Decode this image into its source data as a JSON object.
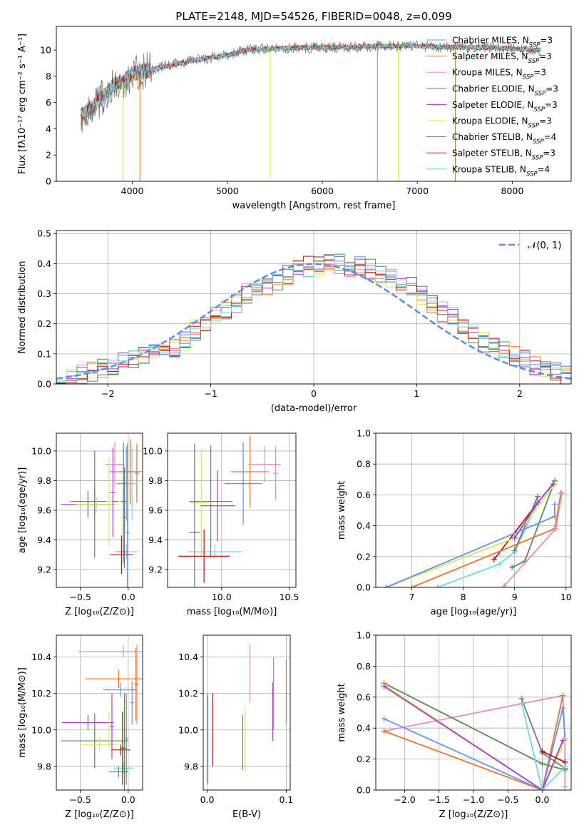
{
  "figure_title": "PLATE=2148, MJD=54526, FIBERID=0048, z=0.099",
  "colors": {
    "Chabrier MILES": "#6495ed",
    "Salpeter MILES": "#e8742c",
    "Kroupa MILES": "#e88bbf",
    "Chabrier ELODIE": "#5a8a5a",
    "Salpeter ELODIE": "#a83cd0",
    "Kroupa ELODIE": "#d8e858",
    "Chabrier STELIB": "#777777",
    "Salpeter STELIB": "#b01818",
    "Kroupa STELIB": "#6fd8e0",
    "gauss": "#5a8fe0"
  },
  "chart_data": [
    {
      "type": "line",
      "panel": "spectrum",
      "title": "PLATE=2148, MJD=54526, FIBERID=0048, z=0.099",
      "xlabel": "wavelength [Angstrom, rest frame]",
      "ylabel": "Flux [fλ10⁻¹⁷ erg cm⁻² s⁻¹ A⁻¹]",
      "xlim": [
        3200,
        8620
      ],
      "ylim": [
        0,
        11.8
      ],
      "xticks": [
        4000,
        5000,
        6000,
        7000,
        8000
      ],
      "yticks": [
        0,
        2,
        4,
        6,
        8,
        10
      ],
      "legend_position": "right",
      "series": [
        {
          "name": "Chabrier MILES, N_SSP=3",
          "color": "#6495ed"
        },
        {
          "name": "Salpeter MILES, N_SSP=3",
          "color": "#e8742c"
        },
        {
          "name": "Kroupa MILES, N_SSP=3",
          "color": "#e88bbf"
        },
        {
          "name": "Chabrier ELODIE, N_SSP=3",
          "color": "#5a8a5a"
        },
        {
          "name": "Salpeter ELODIE, N_SSP=3",
          "color": "#a83cd0"
        },
        {
          "name": "Kroupa ELODIE, N_SSP=3",
          "color": "#d8e858"
        },
        {
          "name": "Chabrier STELIB, N_SSP=4",
          "color": "#777777"
        },
        {
          "name": "Salpeter STELIB, N_SSP=3",
          "color": "#b01818"
        },
        {
          "name": "Kroupa STELIB, N_SSP=4",
          "color": "#6fd8e0"
        }
      ],
      "continuum": [
        [
          3460,
          5.0
        ],
        [
          3600,
          5.8
        ],
        [
          3700,
          6.5
        ],
        [
          3800,
          7.3
        ],
        [
          3900,
          7.6
        ],
        [
          4000,
          8.2
        ],
        [
          4200,
          8.5
        ],
        [
          4500,
          9.0
        ],
        [
          4800,
          9.4
        ],
        [
          5000,
          9.6
        ],
        [
          5200,
          10.0
        ],
        [
          5500,
          10.1
        ],
        [
          5800,
          10.2
        ],
        [
          6200,
          10.2
        ],
        [
          6500,
          10.3
        ],
        [
          6800,
          10.3
        ],
        [
          7000,
          10.3
        ],
        [
          7300,
          10.2
        ],
        [
          7500,
          10.2
        ],
        [
          7800,
          10.2
        ],
        [
          8000,
          10.1
        ],
        [
          8250,
          10.0
        ],
        [
          8300,
          10.0
        ]
      ],
      "dropouts": [
        [
          3900,
          0
        ],
        [
          4080,
          0
        ],
        [
          5450,
          0.2
        ],
        [
          6580,
          0
        ],
        [
          6800,
          0
        ],
        [
          7400,
          0
        ]
      ]
    },
    {
      "type": "line",
      "panel": "residuals",
      "xlabel": "(data-model)/error",
      "ylabel": "Normed distribution",
      "xlim": [
        -2.5,
        2.5
      ],
      "ylim": [
        0,
        0.51
      ],
      "xticks": [
        -2,
        -1,
        0,
        1,
        2
      ],
      "yticks": [
        0.0,
        0.1,
        0.2,
        0.3,
        0.4,
        0.5
      ],
      "legend": [
        "𝒩(0, 1)"
      ],
      "gaussian": {
        "mean": 0,
        "sigma": 1
      },
      "hist_bin_edges_range": [
        -2.5,
        2.5
      ],
      "hist_bins": 50,
      "hist_values_approx": [
        0.02,
        0.03,
        0.03,
        0.04,
        0.05,
        0.06,
        0.07,
        0.09,
        0.1,
        0.11,
        0.12,
        0.12,
        0.14,
        0.18,
        0.21,
        0.22,
        0.25,
        0.27,
        0.3,
        0.31,
        0.33,
        0.33,
        0.36,
        0.38,
        0.39,
        0.39,
        0.4,
        0.4,
        0.39,
        0.39,
        0.38,
        0.36,
        0.35,
        0.33,
        0.32,
        0.3,
        0.27,
        0.24,
        0.22,
        0.19,
        0.17,
        0.14,
        0.13,
        0.11,
        0.09,
        0.08,
        0.06,
        0.05,
        0.04,
        0.03
      ]
    },
    {
      "type": "scatter",
      "panel": "age_vs_Z",
      "xlabel": "Z [log₁₀(Z/Z⊙)]",
      "ylabel": "age  [log₁₀(age/yr)]",
      "xlim": [
        -0.75,
        0.15
      ],
      "ylim": [
        9.08,
        10.12
      ],
      "xticks": [
        -0.5,
        0.0
      ],
      "yticks": [
        9.2,
        9.4,
        9.6,
        9.8,
        10.0
      ],
      "points": [
        {
          "x": -0.14,
          "y": 9.91,
          "xerr": 0.1,
          "yerr": 0.15,
          "color": "#e88bbf"
        },
        {
          "x": -0.05,
          "y": 9.86,
          "xerr": 0.15,
          "yerr": 0.14,
          "color": "#e8742c"
        },
        {
          "x": 0.02,
          "y": 9.86,
          "xerr": 0.12,
          "yerr": 0.22,
          "color": "#e8742c"
        },
        {
          "x": -0.02,
          "y": 9.78,
          "xerr": 0.1,
          "yerr": 0.25,
          "color": "#6495ed"
        },
        {
          "x": 0.04,
          "y": 9.78,
          "xerr": 0.04,
          "yerr": 0.25,
          "color": "#6fd8e0"
        },
        {
          "x": -0.35,
          "y": 9.66,
          "xerr": 0.25,
          "yerr": 0.1,
          "color": "#5a8a5a"
        },
        {
          "x": -0.42,
          "y": 9.64,
          "xerr": 0.28,
          "yerr": 0.09,
          "color": "#a83cd0"
        },
        {
          "x": -0.35,
          "y": 9.64,
          "xerr": 0.2,
          "yerr": 0.36,
          "color": "#777777"
        },
        {
          "x": -0.33,
          "y": 9.64,
          "xerr": 0.22,
          "yerr": 0.05,
          "color": "#d8e858"
        },
        {
          "x": -0.2,
          "y": 9.66,
          "xerr": 0.03,
          "yerr": 0.3,
          "color": "#d8e858"
        },
        {
          "x": -0.16,
          "y": 9.72,
          "xerr": 0.03,
          "yerr": 0.3,
          "color": "#a83cd0"
        },
        {
          "x": -0.02,
          "y": 9.32,
          "xerr": 0.12,
          "yerr": 0.05,
          "color": "#6fd8e0"
        },
        {
          "x": -0.05,
          "y": 9.32,
          "xerr": 0.05,
          "yerr": 0.08,
          "color": "#6495ed"
        },
        {
          "x": -0.07,
          "y": 9.3,
          "xerr": 0.12,
          "yerr": 0.13,
          "color": "#b01818"
        },
        {
          "x": -0.05,
          "y": 9.66,
          "xerr": 0.03,
          "yerr": 0.4,
          "color": "#5a8a5a"
        },
        {
          "x": 0.09,
          "y": 9.85,
          "xerr": 0.02,
          "yerr": 0.2,
          "color": "#e8742c"
        },
        {
          "x": -0.04,
          "y": 9.55,
          "xerr": 0.02,
          "yerr": 0.34,
          "color": "#777777"
        },
        {
          "x": -0.01,
          "y": 9.45,
          "xerr": 0.02,
          "yerr": 0.6,
          "color": "#6495ed"
        }
      ]
    },
    {
      "type": "scatter",
      "panel": "age_vs_mass",
      "xlabel": "mass [log₁₀(M/M⊙)]",
      "ylabel": "",
      "xlim": [
        9.6,
        10.55
      ],
      "ylim": [
        9.08,
        10.12
      ],
      "xticks": [
        10.0,
        10.5
      ],
      "yticks": [
        9.2,
        9.4,
        9.6,
        9.8,
        10.0
      ],
      "points": [
        {
          "x": 10.32,
          "y": 9.91,
          "xerr": 0.12,
          "yerr": 0.12,
          "color": "#e88bbf"
        },
        {
          "x": 10.21,
          "y": 9.86,
          "xerr": 0.14,
          "yerr": 0.24,
          "color": "#e8742c"
        },
        {
          "x": 10.16,
          "y": 9.78,
          "xerr": 0.14,
          "yerr": 0.28,
          "color": "#6495ed"
        },
        {
          "x": 9.92,
          "y": 9.66,
          "xerr": 0.16,
          "yerr": 0.38,
          "color": "#5a8a5a"
        },
        {
          "x": 9.97,
          "y": 9.63,
          "xerr": 0.13,
          "yerr": 0.24,
          "color": "#a83cd0"
        },
        {
          "x": 9.85,
          "y": 9.65,
          "xerr": 0.08,
          "yerr": 0.36,
          "color": "#d8e858"
        },
        {
          "x": 9.8,
          "y": 9.45,
          "xerr": 0.04,
          "yerr": 0.6,
          "color": "#777777"
        },
        {
          "x": 9.95,
          "y": 9.32,
          "xerr": 0.2,
          "yerr": 0.05,
          "color": "#6fd8e0"
        },
        {
          "x": 9.87,
          "y": 9.29,
          "xerr": 0.19,
          "yerr": 0.18,
          "color": "#b01818"
        },
        {
          "x": 10.4,
          "y": 9.85,
          "xerr": 0.02,
          "yerr": 0.18,
          "color": "#e88bbf"
        }
      ]
    },
    {
      "type": "line",
      "panel": "mass_weight_vs_age",
      "xlabel": "age  [log₁₀(age/yr)]",
      "ylabel": "mass weight",
      "xlim": [
        6.3,
        10.1
      ],
      "ylim": [
        0,
        1
      ],
      "xticks": [
        7,
        8,
        9,
        10
      ],
      "yticks": [
        0.0,
        0.2,
        0.4,
        0.6,
        0.8,
        1.0
      ],
      "series": [
        {
          "color": "#6fd8e0",
          "x": [
            7.5,
            8.7,
            9.0,
            9.45,
            9.78
          ],
          "y": [
            0.0,
            0.15,
            0.23,
            0.55,
            0.69
          ]
        },
        {
          "color": "#b01818",
          "x": [
            8.6,
            9.45
          ],
          "y": [
            0.18,
            0.55
          ]
        },
        {
          "color": "#5a8a5a",
          "x": [
            8.95,
            9.2,
            9.78
          ],
          "y": [
            0.13,
            0.17,
            0.69
          ]
        },
        {
          "color": "#777777",
          "x": [
            9.0,
            9.45
          ],
          "y": [
            0.24,
            0.59
          ]
        },
        {
          "color": "#d8e858",
          "x": [
            6.5,
            9.0,
            9.78
          ],
          "y": [
            0.0,
            0.32,
            0.67
          ]
        },
        {
          "color": "#a83cd0",
          "x": [
            9.0,
            9.45,
            9.75
          ],
          "y": [
            0.32,
            0.55,
            0.67
          ]
        },
        {
          "color": "#6495ed",
          "x": [
            6.5,
            9.78,
            9.78
          ],
          "y": [
            0.0,
            0.46,
            0.54
          ]
        },
        {
          "color": "#e8742c",
          "x": [
            7.0,
            9.78,
            9.9
          ],
          "y": [
            0.0,
            0.38,
            0.61
          ]
        },
        {
          "color": "#e88bbf",
          "x": [
            8.8,
            9.8,
            9.92
          ],
          "y": [
            0.01,
            0.38,
            0.61
          ]
        }
      ]
    },
    {
      "type": "scatter",
      "panel": "mass_vs_Z",
      "xlabel": "Z [log₁₀(Z/Z⊙)]",
      "ylabel": "mass [log₁₀(M/M⊙)]",
      "xlim": [
        -0.75,
        0.15
      ],
      "ylim": [
        9.67,
        10.52
      ],
      "xticks": [
        -0.5,
        0.0
      ],
      "yticks": [
        9.8,
        10.0,
        10.2,
        10.4
      ],
      "points": [
        {
          "x": -0.05,
          "y": 10.43,
          "xerr": 0.47,
          "yerr": 0.03,
          "color": "#e88bbf"
        },
        {
          "x": -0.1,
          "y": 10.28,
          "xerr": 0.35,
          "yerr": 0.05,
          "color": "#e8742c"
        },
        {
          "x": -0.08,
          "y": 10.22,
          "xerr": 0.18,
          "yerr": 0.04,
          "color": "#6495ed"
        },
        {
          "x": -0.42,
          "y": 10.04,
          "xerr": 0.27,
          "yerr": 0.04,
          "color": "#a83cd0"
        },
        {
          "x": -0.35,
          "y": 9.94,
          "xerr": 0.35,
          "yerr": 0.15,
          "color": "#5a8a5a"
        },
        {
          "x": -0.3,
          "y": 9.92,
          "xerr": 0.2,
          "yerr": 0.04,
          "color": "#d8e858"
        },
        {
          "x": -0.08,
          "y": 9.89,
          "xerr": 0.1,
          "yerr": 0.03,
          "color": "#b01818"
        },
        {
          "x": -0.1,
          "y": 9.77,
          "xerr": 0.1,
          "yerr": 0.03,
          "color": "#777777"
        },
        {
          "x": -0.05,
          "y": 9.79,
          "xerr": 0.1,
          "yerr": 0.03,
          "color": "#6fd8e0"
        },
        {
          "x": -0.02,
          "y": 9.95,
          "xerr": 0.02,
          "yerr": 0.25,
          "color": "#777777"
        },
        {
          "x": -0.04,
          "y": 9.9,
          "xerr": 0.02,
          "yerr": 0.3,
          "color": "#5a8a5a"
        },
        {
          "x": 0.09,
          "y": 10.25,
          "xerr": 0.02,
          "yerr": 0.22,
          "color": "#e88bbf"
        },
        {
          "x": 0.04,
          "y": 10.15,
          "xerr": 0.02,
          "yerr": 0.12,
          "color": "#6495ed"
        },
        {
          "x": -0.17,
          "y": 10.02,
          "xerr": 0.02,
          "yerr": 0.18,
          "color": "#a83cd0"
        },
        {
          "x": -0.2,
          "y": 10.0,
          "xerr": 0.02,
          "yerr": 0.1,
          "color": "#d8e858"
        },
        {
          "x": 0.08,
          "y": 10.25,
          "xerr": 0.02,
          "yerr": 0.2,
          "color": "#e8742c"
        },
        {
          "x": -0.06,
          "y": 9.9,
          "xerr": 0.02,
          "yerr": 0.2,
          "color": "#b01818"
        }
      ]
    },
    {
      "type": "scatter",
      "panel": "mass_vs_EBV",
      "xlabel": "E(B-V)",
      "ylabel": "",
      "xlim": [
        -0.005,
        0.105
      ],
      "ylim": [
        9.67,
        10.52
      ],
      "xticks": [
        0.0,
        0.1
      ],
      "yticks": [
        9.8,
        10.0,
        10.2,
        10.4
      ],
      "points": [
        {
          "x": 0.0,
          "y": 9.95,
          "xerr": 0,
          "yerr": 0.25,
          "color": "#777777"
        },
        {
          "x": 0.001,
          "y": 9.95,
          "xerr": 0,
          "yerr": 0.24,
          "color": "#6fd8e0"
        },
        {
          "x": 0.007,
          "y": 10.0,
          "xerr": 0,
          "yerr": 0.2,
          "color": "#b01818"
        },
        {
          "x": 0.045,
          "y": 9.93,
          "xerr": 0,
          "yerr": 0.15,
          "color": "#5a8a5a"
        },
        {
          "x": 0.048,
          "y": 9.95,
          "xerr": 0,
          "yerr": 0.18,
          "color": "#d8e858"
        },
        {
          "x": 0.054,
          "y": 10.31,
          "xerr": 0,
          "yerr": 0.16,
          "color": "#e88bbf"
        },
        {
          "x": 0.083,
          "y": 10.1,
          "xerr": 0,
          "yerr": 0.16,
          "color": "#a83cd0"
        },
        {
          "x": 0.084,
          "y": 10.2,
          "xerr": 0,
          "yerr": 0.2,
          "color": "#6495ed"
        },
        {
          "x": 0.1,
          "y": 10.21,
          "xerr": 0,
          "yerr": 0.18,
          "color": "#e8742c"
        }
      ]
    },
    {
      "type": "line",
      "panel": "mass_weight_vs_Z",
      "xlabel": "Z [log₁₀(Z/Z⊙)]",
      "ylabel": "mass weight",
      "xlim": [
        -2.42,
        0.42
      ],
      "ylim": [
        0,
        1
      ],
      "xticks": [
        -2.0,
        -1.5,
        -1.0,
        -0.5,
        0.0
      ],
      "yticks": [
        0.0,
        0.2,
        0.4,
        0.6,
        0.8,
        1.0
      ],
      "series": [
        {
          "color": "#e88bbf",
          "x": [
            -2.3,
            0.3,
            0.33,
            0.33
          ],
          "y": [
            0.38,
            0.61,
            0.33,
            0.02
          ]
        },
        {
          "color": "#e8742c",
          "x": [
            -2.3,
            0.0,
            0.3
          ],
          "y": [
            0.38,
            0.0,
            0.61
          ]
        },
        {
          "color": "#6495ed",
          "x": [
            -2.3,
            0.0,
            0.3,
            0.33
          ],
          "y": [
            0.46,
            0.0,
            0.53,
            0.33
          ]
        },
        {
          "color": "#5a8a5a",
          "x": [
            -2.3,
            0.0,
            0.33
          ],
          "y": [
            0.69,
            0.17,
            0.13
          ]
        },
        {
          "color": "#d8e858",
          "x": [
            -2.3,
            0.0,
            0.33
          ],
          "y": [
            0.68,
            0.0,
            0.32
          ]
        },
        {
          "color": "#a83cd0",
          "x": [
            -2.3,
            0.0,
            0.3
          ],
          "y": [
            0.67,
            0.0,
            0.32
          ]
        },
        {
          "color": "#777777",
          "x": [
            -0.3,
            0.0,
            0.33
          ],
          "y": [
            0.59,
            0.24,
            0.14
          ]
        },
        {
          "color": "#6fd8e0",
          "x": [
            -0.3,
            0.0,
            0.33
          ],
          "y": [
            0.56,
            0.0,
            0.15
          ]
        },
        {
          "color": "#b01818",
          "x": [
            0.0,
            0.33
          ],
          "y": [
            0.25,
            0.18
          ]
        }
      ]
    }
  ]
}
